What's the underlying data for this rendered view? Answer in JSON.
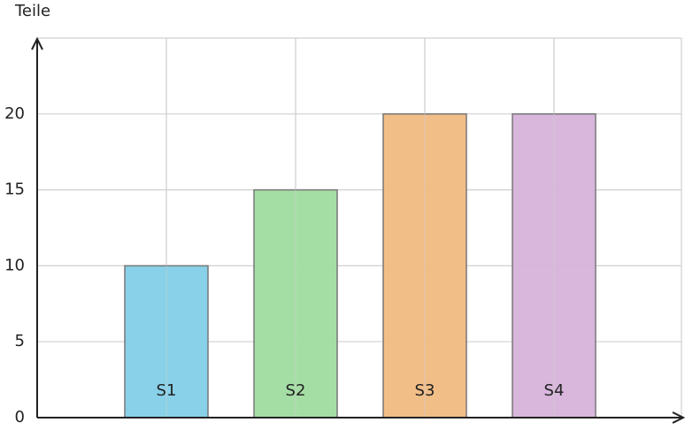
{
  "chart_data": {
    "type": "bar",
    "y_label": "Teile",
    "categories": [
      "S1",
      "S2",
      "S3",
      "S4"
    ],
    "values": [
      10,
      15,
      20,
      20
    ],
    "colors": [
      "#82cfe8",
      "#a0dca0",
      "#f1bb82",
      "#d7b3db"
    ],
    "ylim": [
      0,
      25
    ],
    "yticks": [
      0,
      5,
      10,
      15,
      20
    ],
    "grid": true
  }
}
